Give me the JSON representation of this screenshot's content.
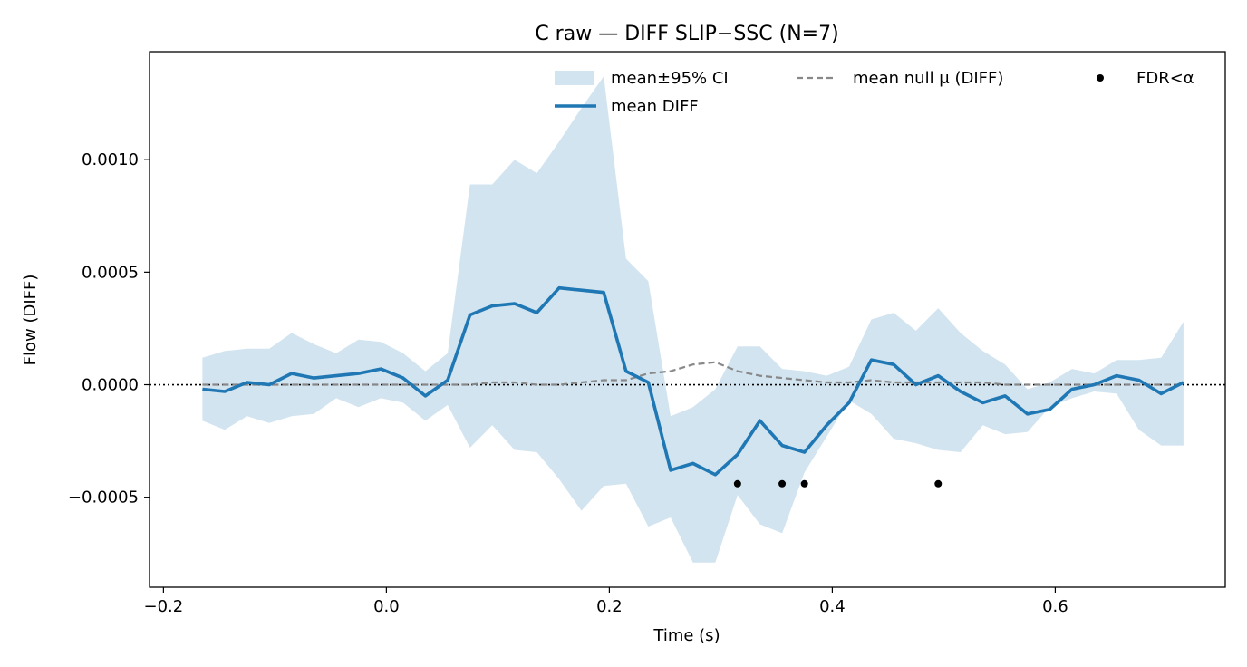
{
  "chart_data": {
    "type": "line",
    "title": "C raw — DIFF SLIP−SSC (N=7)",
    "xlabel": "Time (s)",
    "ylabel": "Flow (DIFF)",
    "xlim": [
      -0.2125,
      0.7525
    ],
    "ylim": [
      -0.0009,
      0.00148
    ],
    "xticks": [
      -0.2,
      0.0,
      0.2,
      0.4,
      0.6
    ],
    "xtick_labels": [
      "−0.2",
      "0.0",
      "0.2",
      "0.4",
      "0.6"
    ],
    "yticks": [
      -0.0005,
      0.0,
      0.0005,
      0.001
    ],
    "ytick_labels": [
      "−0.0005",
      "0.0000",
      "0.0005",
      "0.0010"
    ],
    "grid": false,
    "legend_position": "top-right",
    "zero_line": {
      "y": 0,
      "style": "dotted",
      "color": "#000000"
    },
    "x": [
      -0.165,
      -0.145,
      -0.125,
      -0.105,
      -0.085,
      -0.065,
      -0.045,
      -0.025,
      -0.005,
      0.015,
      0.035,
      0.055,
      0.075,
      0.095,
      0.115,
      0.135,
      0.155,
      0.175,
      0.195,
      0.215,
      0.235,
      0.255,
      0.275,
      0.295,
      0.315,
      0.335,
      0.355,
      0.375,
      0.395,
      0.415,
      0.435,
      0.455,
      0.475,
      0.495,
      0.515,
      0.535,
      0.555,
      0.575,
      0.595,
      0.615,
      0.635,
      0.655,
      0.675,
      0.695,
      0.715
    ],
    "series": [
      {
        "name": "mean±95% CI",
        "kind": "band",
        "color": "#1f77b4",
        "opacity": 0.2,
        "upper": [
          0.00012,
          0.00015,
          0.00016,
          0.00016,
          0.00023,
          0.00018,
          0.00014,
          0.0002,
          0.00019,
          0.00014,
          6e-05,
          0.00014,
          0.00089,
          0.00089,
          0.001,
          0.00094,
          0.00108,
          0.00123,
          0.00137,
          0.00056,
          0.00046,
          -0.00014,
          -0.0001,
          -2e-05,
          0.00017,
          0.00017,
          7e-05,
          6e-05,
          4e-05,
          8e-05,
          0.00029,
          0.00032,
          0.00024,
          0.00034,
          0.00023,
          0.00015,
          9e-05,
          -2e-05,
          1e-05,
          7e-05,
          5e-05,
          0.00011,
          0.00011,
          0.00012,
          0.00028
        ],
        "lower": [
          -0.00016,
          -0.0002,
          -0.00014,
          -0.00017,
          -0.00014,
          -0.00013,
          -6e-05,
          -0.0001,
          -6e-05,
          -8e-05,
          -0.00016,
          -9e-05,
          -0.00028,
          -0.00018,
          -0.00029,
          -0.0003,
          -0.00042,
          -0.00056,
          -0.00045,
          -0.00044,
          -0.00063,
          -0.00059,
          -0.00079,
          -0.00079,
          -0.00049,
          -0.00062,
          -0.00066,
          -0.00039,
          -0.00023,
          -7e-05,
          -0.00013,
          -0.00024,
          -0.00026,
          -0.00029,
          -0.0003,
          -0.00018,
          -0.00022,
          -0.00021,
          -0.0001,
          -6e-05,
          -3e-05,
          -4e-05,
          -0.0002,
          -0.00027,
          -0.00027
        ]
      },
      {
        "name": "mean DIFF",
        "kind": "line",
        "color": "#1f77b4",
        "values": [
          -2e-05,
          -3e-05,
          1e-05,
          0.0,
          5e-05,
          3e-05,
          4e-05,
          5e-05,
          7e-05,
          3e-05,
          -5e-05,
          2e-05,
          0.00031,
          0.00035,
          0.00036,
          0.00032,
          0.00043,
          0.00042,
          0.00041,
          6e-05,
          1e-05,
          -0.00038,
          -0.00035,
          -0.0004,
          -0.00031,
          -0.00016,
          -0.00027,
          -0.0003,
          -0.00018,
          -8e-05,
          0.00011,
          9e-05,
          0.0,
          4e-05,
          -3e-05,
          -8e-05,
          -5e-05,
          -0.00013,
          -0.00011,
          -2e-05,
          0.0,
          4e-05,
          2e-05,
          -4e-05,
          1e-05
        ]
      },
      {
        "name": "mean null μ (DIFF)",
        "kind": "dashed-line",
        "color": "#888888",
        "values": [
          0.0,
          0.0,
          0.0,
          0.0,
          0.0,
          0.0,
          0.0,
          0.0,
          0.0,
          0.0,
          0.0,
          0.0,
          0.0,
          1e-05,
          1e-05,
          0.0,
          0.0,
          1e-05,
          2e-05,
          2e-05,
          5e-05,
          6e-05,
          9e-05,
          0.0001,
          6e-05,
          4e-05,
          3e-05,
          2e-05,
          1e-05,
          1e-05,
          2e-05,
          1e-05,
          1e-05,
          1e-05,
          1e-05,
          1e-05,
          0.0,
          0.0,
          0.0,
          0.0,
          0.0,
          0.0,
          0.0,
          0.0,
          0.0
        ]
      },
      {
        "name": "FDR<α",
        "kind": "markers",
        "color": "#000000",
        "points": [
          {
            "x": 0.315,
            "y": -0.00044
          },
          {
            "x": 0.355,
            "y": -0.00044
          },
          {
            "x": 0.375,
            "y": -0.00044
          },
          {
            "x": 0.495,
            "y": -0.00044
          }
        ]
      }
    ],
    "legend": [
      {
        "label": "mean±95% CI",
        "kind": "band"
      },
      {
        "label": "mean DIFF",
        "kind": "line"
      },
      {
        "label": "mean null μ (DIFF)",
        "kind": "dashed-line"
      },
      {
        "label": "FDR<α",
        "kind": "markers"
      }
    ]
  }
}
